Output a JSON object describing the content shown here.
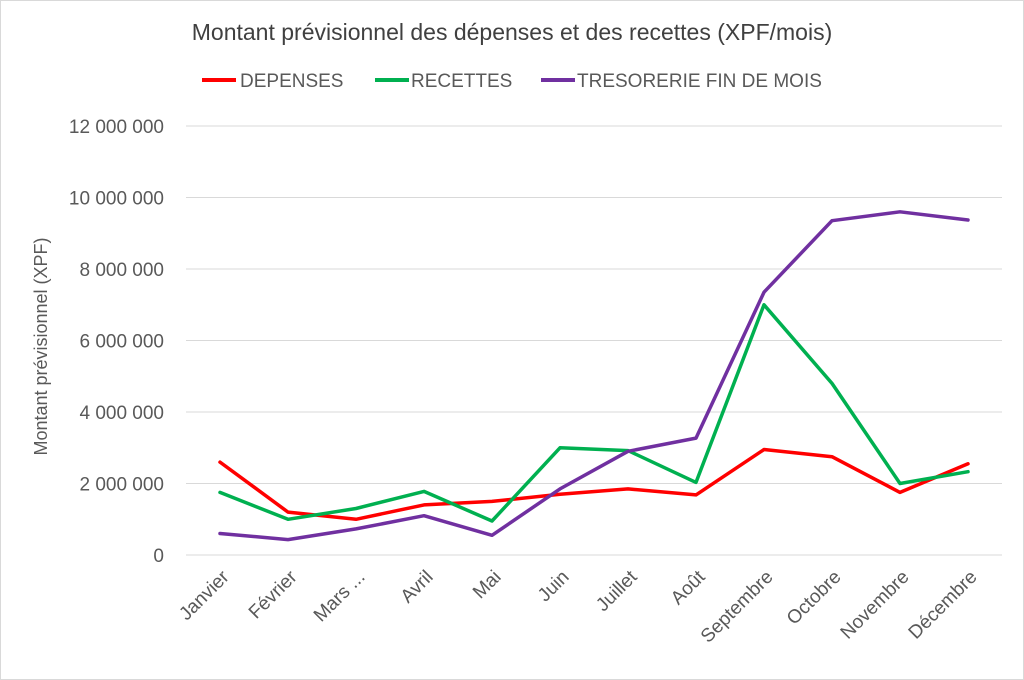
{
  "chart_data": {
    "type": "line",
    "title": "Montant prévisionnel des dépenses et des recettes (XPF/mois)",
    "xlabel": "",
    "ylabel": "Montant prévisionnel (XPF)",
    "categories": [
      "Janvier",
      "Février",
      "Mars ...",
      "Avril",
      "Mai",
      "Juin",
      "Juillet",
      "Août",
      "Septembre",
      "Octobre",
      "Novembre",
      "Décembre"
    ],
    "ylim": [
      0,
      12000000
    ],
    "yticks": [
      0,
      2000000,
      4000000,
      6000000,
      8000000,
      10000000,
      12000000
    ],
    "ytick_labels": [
      "0",
      "2 000 000",
      "4 000 000",
      "6 000 000",
      "8 000 000",
      "10 000 000",
      "12 000 000"
    ],
    "grid": true,
    "legend_position": "top",
    "series": [
      {
        "name": "DEPENSES",
        "color": "#ff0000",
        "values": [
          2600000,
          1200000,
          1000000,
          1400000,
          1500000,
          1700000,
          1850000,
          1680000,
          2950000,
          2750000,
          1750000,
          2550000
        ]
      },
      {
        "name": "RECETTES",
        "color": "#00b050",
        "values": [
          1750000,
          1000000,
          1300000,
          1780000,
          950000,
          3000000,
          2920000,
          2030000,
          7000000,
          4800000,
          2000000,
          2330000
        ]
      },
      {
        "name": "TRESORERIE FIN DE MOIS",
        "color": "#7030a0",
        "values": [
          600000,
          430000,
          730000,
          1100000,
          550000,
          1850000,
          2900000,
          3270000,
          7350000,
          9350000,
          9600000,
          9370000
        ]
      }
    ]
  }
}
